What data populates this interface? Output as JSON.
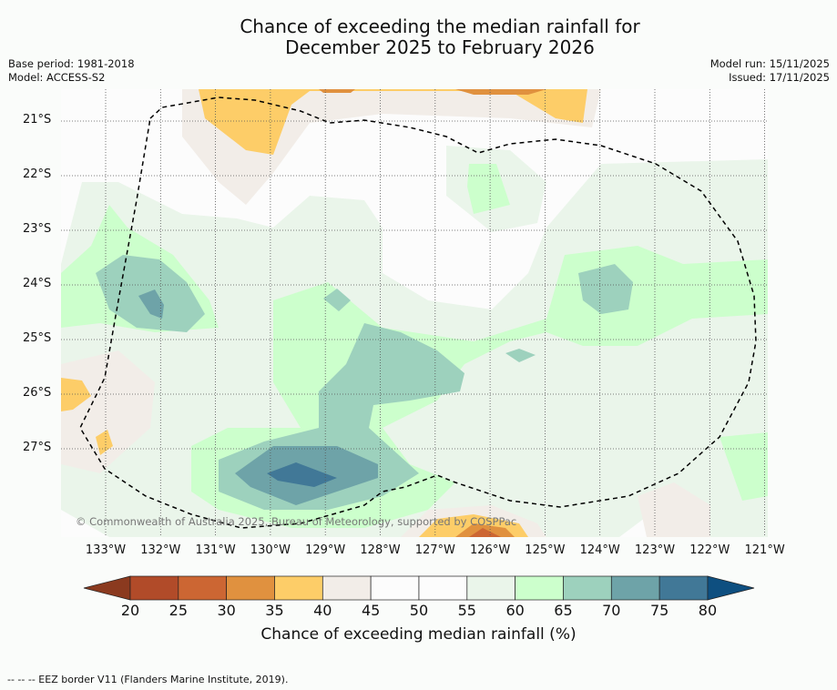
{
  "title": [
    "Chance of exceeding the median rainfall for",
    "December 2025 to February 2026"
  ],
  "left_meta": [
    "Base period: 1981-2018",
    "Model: ACCESS-S2"
  ],
  "right_meta": [
    "Model run: 15/11/2025",
    "Issued: 17/11/2025"
  ],
  "copyright": "© Commonwealth of Australia 2025, Bureau of Meteorology, supported by COSPPac",
  "lon_labels": [
    "133°W",
    "132°W",
    "131°W",
    "130°W",
    "129°W",
    "128°W",
    "127°W",
    "126°W",
    "125°W",
    "124°W",
    "123°W",
    "122°W",
    "121°W"
  ],
  "lat_labels": [
    "21°S",
    "22°S",
    "23°S",
    "24°S",
    "25°S",
    "26°S",
    "27°S"
  ],
  "colorbar": {
    "ticks": [
      "20",
      "25",
      "30",
      "35",
      "40",
      "45",
      "50",
      "55",
      "60",
      "65",
      "70",
      "75",
      "80"
    ],
    "colors": [
      "#b14b29",
      "#cc6633",
      "#e0913f",
      "#fdcd68",
      "#f2ede8",
      "#fcfcfc",
      "#fcfcfc",
      "#eaf5ea",
      "#ccffcc",
      "#9dd1bd",
      "#6ea3a8",
      "#417897"
    ],
    "under_color": "#8b3a1f",
    "over_color": "#0e4f80",
    "label": "Chance of exceeding median rainfall (%)"
  },
  "footer": "-- --  -- EEZ border V11 (Flanders Marine Institute, 2019)."
}
